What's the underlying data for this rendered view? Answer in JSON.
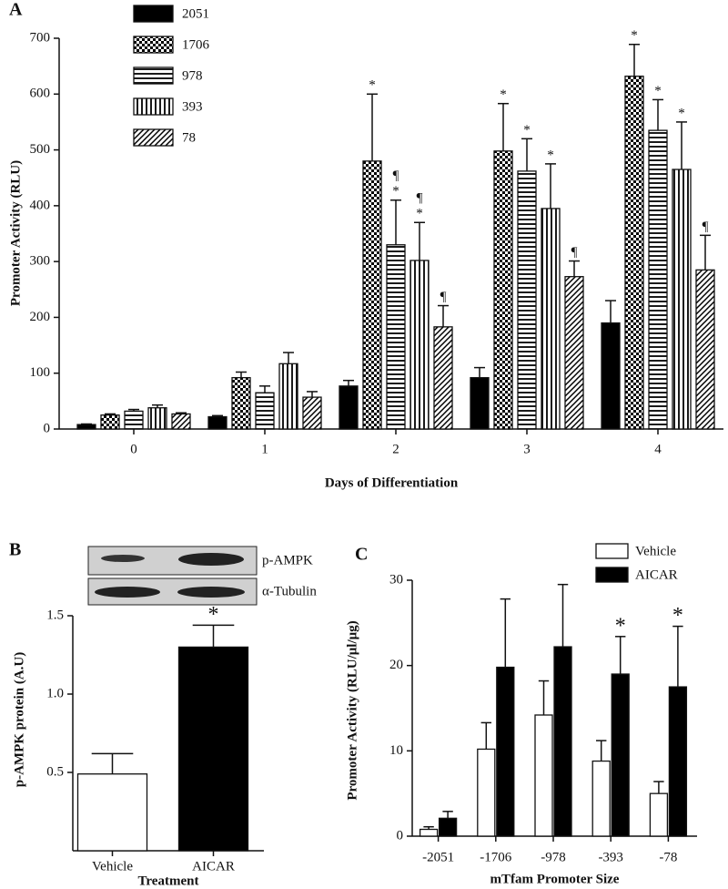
{
  "chart_data": [
    {
      "type": "bar",
      "panel_label": "A",
      "ylabel": "Promoter Activity (RLU)",
      "xlabel": "Days of Differentiation",
      "categories": [
        "0",
        "1",
        "2",
        "3",
        "4"
      ],
      "ylim": [
        0,
        700
      ],
      "yticks": [
        0,
        100,
        200,
        300,
        400,
        500,
        600,
        700
      ],
      "legend": "upper left",
      "series": [
        {
          "name": "2051",
          "color": "#000000",
          "pattern": "solid",
          "values": [
            8,
            22,
            77,
            92,
            190
          ],
          "errors": [
            1,
            2,
            10,
            18,
            40
          ]
        },
        {
          "name": "1706",
          "color": "#000000",
          "pattern": "checker",
          "values": [
            25,
            92,
            480,
            498,
            632
          ],
          "errors": [
            2,
            10,
            120,
            85,
            57
          ],
          "markers": [
            null,
            null,
            [
              "*"
            ],
            [
              "*"
            ],
            [
              "*"
            ]
          ]
        },
        {
          "name": "978",
          "color": "#000000",
          "pattern": "horizontal",
          "values": [
            32,
            65,
            330,
            462,
            535
          ],
          "errors": [
            3,
            12,
            80,
            58,
            55
          ],
          "markers": [
            null,
            null,
            [
              "¶",
              "*"
            ],
            [
              "*"
            ],
            [
              "*"
            ]
          ]
        },
        {
          "name": "393",
          "color": "#000000",
          "pattern": "vertical",
          "values": [
            38,
            117,
            302,
            395,
            465
          ],
          "errors": [
            5,
            20,
            68,
            80,
            85
          ],
          "markers": [
            null,
            null,
            [
              "¶",
              "*"
            ],
            [
              "*"
            ],
            [
              "*"
            ]
          ]
        },
        {
          "name": "78",
          "color": "#000000",
          "pattern": "diagonal",
          "values": [
            27,
            57,
            183,
            273,
            285
          ],
          "errors": [
            2,
            10,
            38,
            28,
            62
          ],
          "markers": [
            null,
            null,
            [
              "¶"
            ],
            [
              "¶"
            ],
            [
              "¶"
            ]
          ]
        }
      ]
    },
    {
      "type": "bar",
      "panel_label": "B",
      "ylabel": "p-AMPK protein (A.U)",
      "xlabel": "Treatment",
      "categories": [
        "Vehicle",
        "AICAR"
      ],
      "values": [
        0.49,
        1.3
      ],
      "errors": [
        0.13,
        0.14
      ],
      "colors": [
        "#ffffff",
        "#000000"
      ],
      "markers": [
        null,
        [
          "*"
        ]
      ],
      "ylim": [
        0,
        1.5
      ],
      "yticks": [
        0.5,
        {
          "value": 1,
          "label": "1.0"
        },
        1.5
      ],
      "blot_labels": [
        "p-AMPK",
        "α-Tubulin"
      ]
    },
    {
      "type": "bar",
      "panel_label": "C",
      "ylabel": "Promoter Activity (RLU/μl/μg)",
      "xlabel": "mTfam  Promoter Size",
      "categories": [
        "-2051",
        "-1706",
        "-978",
        "-393",
        "-78"
      ],
      "ylim": [
        0,
        30
      ],
      "yticks": [
        0,
        10,
        20,
        30
      ],
      "legend": "upper right",
      "series": [
        {
          "name": "Vehicle",
          "color": "#ffffff",
          "pattern": "solid",
          "values": [
            0.8,
            10.2,
            14.2,
            8.8,
            5.0
          ],
          "errors": [
            0.3,
            3.1,
            4.0,
            2.4,
            1.4
          ]
        },
        {
          "name": "AICAR",
          "color": "#000000",
          "pattern": "solid",
          "values": [
            2.1,
            19.8,
            22.2,
            19.0,
            17.5
          ],
          "errors": [
            0.8,
            8.0,
            7.3,
            4.4,
            7.1
          ],
          "markers": [
            null,
            null,
            null,
            [
              "*"
            ],
            [
              "*"
            ]
          ]
        }
      ]
    }
  ]
}
